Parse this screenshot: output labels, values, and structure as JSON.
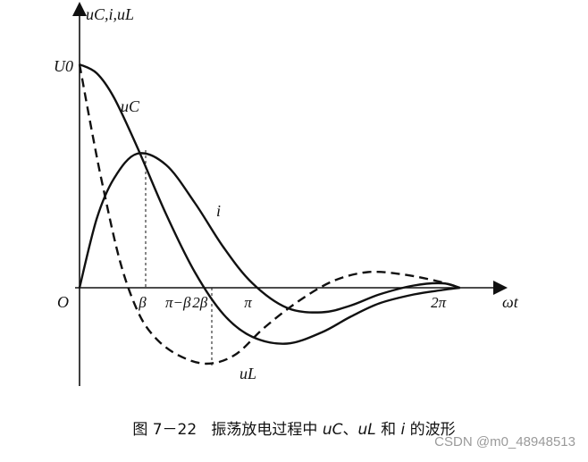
{
  "chart_data": {
    "type": "line",
    "title": "",
    "xlabel": "ωt",
    "ylabel": "uC,i,uL",
    "origin_label": "O",
    "u0_label": "U0",
    "x_ticks": [
      "β",
      "π−β",
      "2β",
      "π",
      "2π"
    ],
    "series": [
      {
        "name": "uC",
        "style": "solid",
        "x": [
          0,
          0.3,
          0.6,
          1.0,
          1.5,
          2.0,
          2.5,
          3.0,
          3.6,
          4.2,
          4.7,
          5.2,
          5.8,
          6.3,
          6.6
        ],
        "y": [
          1.0,
          0.96,
          0.85,
          0.63,
          0.33,
          0.07,
          -0.12,
          -0.22,
          -0.25,
          -0.2,
          -0.13,
          -0.07,
          -0.03,
          -0.01,
          0.0
        ]
      },
      {
        "name": "i",
        "style": "solid",
        "x": [
          0,
          0.3,
          0.6,
          1.0,
          1.5,
          2.0,
          2.5,
          3.0,
          3.6,
          4.2,
          4.7,
          5.2,
          5.8,
          6.3,
          6.6
        ],
        "y": [
          0.0,
          0.31,
          0.49,
          0.6,
          0.55,
          0.38,
          0.18,
          0.02,
          -0.09,
          -0.11,
          -0.08,
          -0.03,
          0.01,
          0.02,
          0.0
        ]
      },
      {
        "name": "uL",
        "style": "dashed",
        "x": [
          0,
          0.2,
          0.4,
          0.7,
          1.0,
          1.3,
          1.7,
          2.2,
          2.7,
          3.2,
          3.8,
          4.4,
          5.0,
          5.6,
          6.2,
          6.6
        ],
        "y": [
          1.0,
          0.72,
          0.46,
          0.12,
          -0.1,
          -0.22,
          -0.3,
          -0.34,
          -0.3,
          -0.18,
          -0.06,
          0.03,
          0.07,
          0.06,
          0.03,
          0.0
        ]
      }
    ],
    "xlim": [
      0,
      7.1
    ],
    "ylim": [
      -0.45,
      1.2
    ]
  },
  "caption": {
    "fig_no": "图 7－22",
    "text_pre": "振荡放电过程中",
    "uc": "uC",
    "sep": "、",
    "ul": "uL",
    "text_mid": "和",
    "i": "i",
    "text_post": "的波形"
  },
  "watermark": "CSDN @m0_48948513"
}
